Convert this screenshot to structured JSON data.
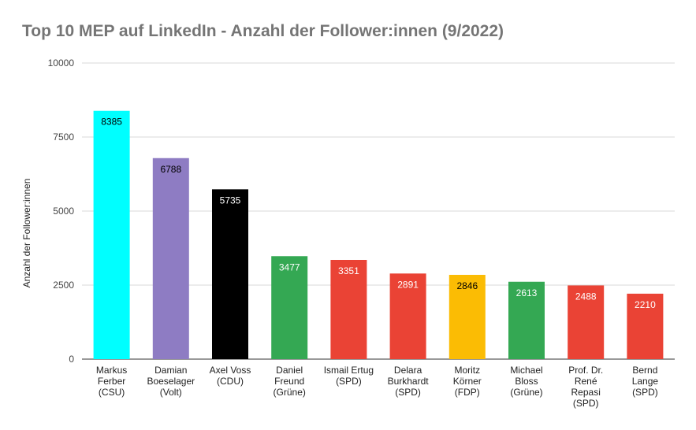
{
  "chart_data": {
    "type": "bar",
    "title": "Top 10 MEP auf LinkedIn - Anzahl der Follower:innen (9/2022)",
    "ylabel": "Anzahl der Follower:innen",
    "xlabel": "",
    "ylim": [
      0,
      10000
    ],
    "yticks": [
      "0",
      "2500",
      "5000",
      "7500",
      "10000"
    ],
    "ytick_values": [
      0,
      2500,
      5000,
      7500,
      10000
    ],
    "grid": true,
    "categories": [
      [
        "Markus",
        "Ferber",
        "(CSU)"
      ],
      [
        "Damian",
        "Boeselager",
        "(Volt)"
      ],
      [
        "Axel Voss",
        "(CDU)"
      ],
      [
        "Daniel",
        "Freund",
        "(Grüne)"
      ],
      [
        "Ismail Ertug",
        "(SPD)"
      ],
      [
        "Delara",
        "Burkhardt",
        "(SPD)"
      ],
      [
        "Moritz",
        "Körner",
        "(FDP)"
      ],
      [
        "Michael",
        "Bloss",
        "(Grüne)"
      ],
      [
        "Prof. Dr.",
        "René",
        "Repasi",
        "(SPD)"
      ],
      [
        "Bernd",
        "Lange",
        "(SPD)"
      ]
    ],
    "values": [
      8385,
      6788,
      5735,
      3477,
      3351,
      2891,
      2846,
      2613,
      2488,
      2210
    ],
    "data_labels": [
      "8385",
      "6788",
      "5735",
      "3477",
      "3351",
      "2891",
      "2846",
      "2613",
      "2488",
      "2210"
    ],
    "colors": [
      "#00ffff",
      "#8e7cc3",
      "#000000",
      "#34a853",
      "#ea4335",
      "#ea4335",
      "#fbbc04",
      "#34a853",
      "#ea4335",
      "#ea4335"
    ],
    "label_colors": [
      "#000000",
      "#000000",
      "#ffffff",
      "#ffffff",
      "#ffffff",
      "#ffffff",
      "#000000",
      "#ffffff",
      "#ffffff",
      "#ffffff"
    ]
  }
}
